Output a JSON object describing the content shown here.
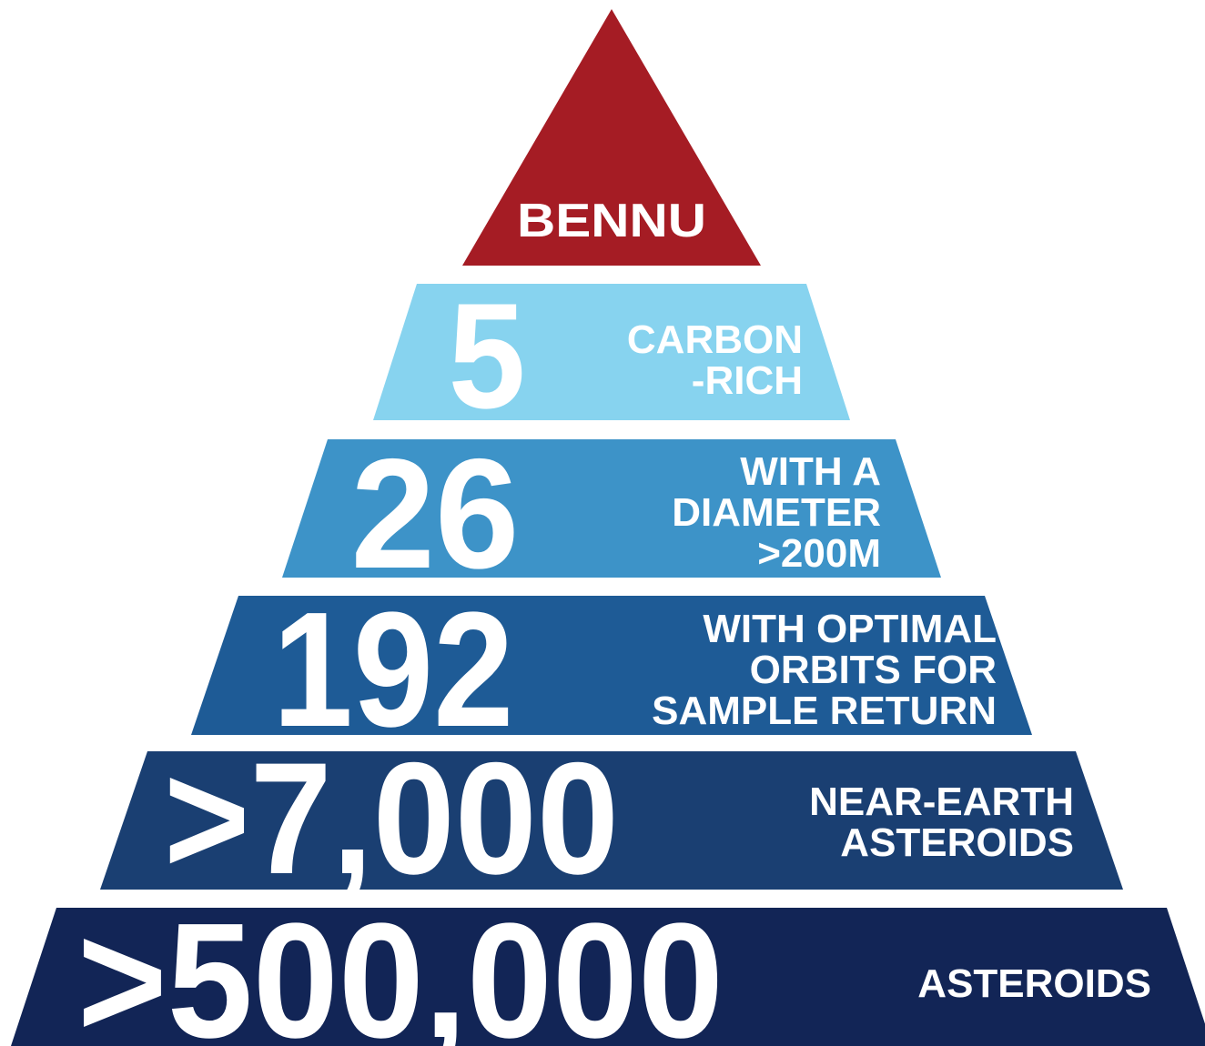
{
  "title": "BENNU",
  "tiers": [
    {
      "number": "5",
      "label": [
        "CARBON",
        "-RICH"
      ]
    },
    {
      "number": "26",
      "label": [
        "WITH A",
        "DIAMETER",
        ">200M"
      ]
    },
    {
      "number": "192",
      "label": [
        "WITH OPTIMAL",
        "ORBITS FOR",
        "SAMPLE RETURN"
      ]
    },
    {
      "number": ">7,000",
      "label": [
        "NEAR-EARTH",
        "ASTEROIDS"
      ]
    },
    {
      "number": ">500,000",
      "label": [
        "ASTEROIDS"
      ]
    }
  ]
}
